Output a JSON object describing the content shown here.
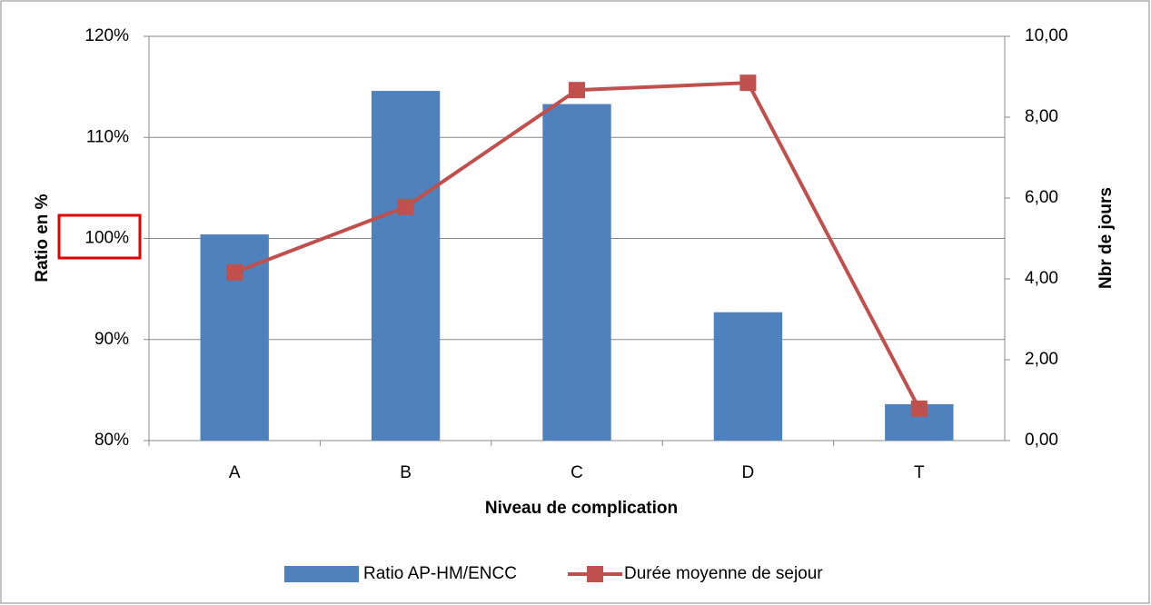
{
  "chart_data": {
    "type": "bar",
    "categories": [
      "A",
      "B",
      "C",
      "D",
      "T"
    ],
    "x_label": "Niveau de complication",
    "y_label": "Ratio en %",
    "y2_label": "Nbr de jours",
    "series": [
      {
        "name": "Ratio AP-HM/ENCC",
        "color": "#4f81bd",
        "values": [
          100.4,
          114.6,
          113.3,
          92.7,
          83.6
        ]
      },
      {
        "name": "Durée moyenne de sejour",
        "color": "#c0504d",
        "type": "line",
        "axis": "y2",
        "values": [
          4.16,
          5.78,
          8.67,
          8.85,
          0.79
        ]
      }
    ],
    "ylim": [
      80,
      120
    ],
    "yticks": [
      {
        "value": 80,
        "label": "80%"
      },
      {
        "value": 90,
        "label": "90%"
      },
      {
        "value": 100,
        "label": "100%"
      },
      {
        "value": 110,
        "label": "110%"
      },
      {
        "value": 120,
        "label": "120%"
      }
    ],
    "y2lim": [
      0,
      10
    ],
    "y2ticks": [
      {
        "value": 0,
        "label": "0,00"
      },
      {
        "value": 2,
        "label": "2,00"
      },
      {
        "value": 4,
        "label": "4,00"
      },
      {
        "value": 6,
        "label": "6,00"
      },
      {
        "value": 8,
        "label": "8,00"
      },
      {
        "value": 10,
        "label": "10,00"
      }
    ],
    "grid": true,
    "legend": "bottom"
  }
}
